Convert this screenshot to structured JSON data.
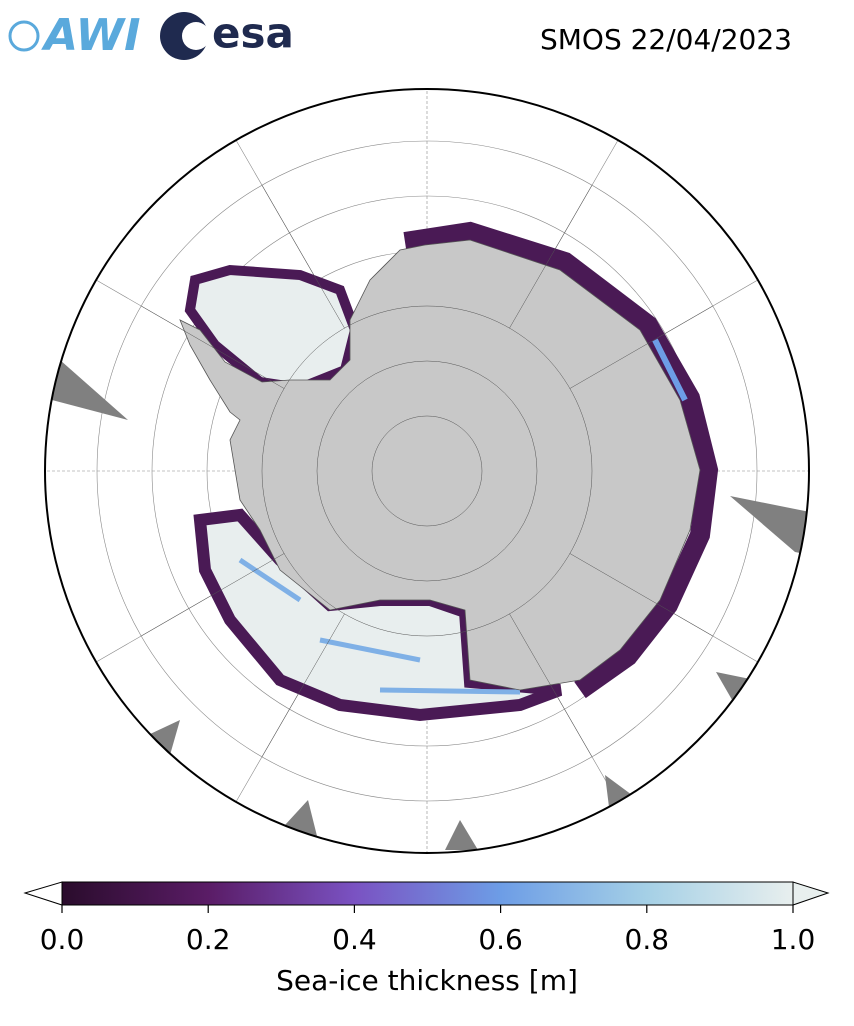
{
  "header": {
    "title": "SMOS 22/04/2023",
    "logos": [
      "AWI",
      "esa"
    ]
  },
  "colorbar": {
    "label": "Sea-ice thickness [m]",
    "lim": [
      0,
      1
    ],
    "ticks": [
      {
        "value": 0,
        "label": "0.0"
      },
      {
        "value": 0.2,
        "label": "0.2"
      },
      {
        "value": 0.4,
        "label": "0.4"
      },
      {
        "value": 0.6,
        "label": "0.6"
      },
      {
        "value": 0.8,
        "label": "0.8"
      },
      {
        "value": 1,
        "label": "1.0"
      }
    ],
    "colormap": [
      "#2a0c2c",
      "#5a1c66",
      "#7a52c2",
      "#6d9de6",
      "#a5d0e6",
      "#e8efee"
    ]
  }
}
